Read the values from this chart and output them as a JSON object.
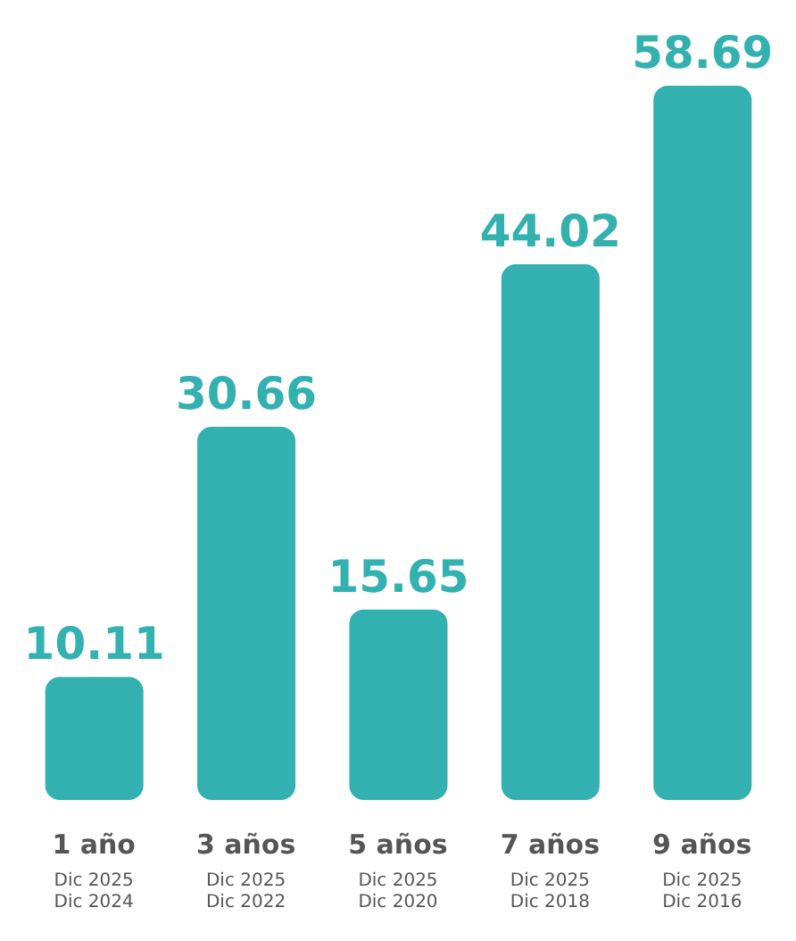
{
  "chart_data": {
    "type": "bar",
    "categories": [
      "1 año\nDic 2025\nDic 2024",
      "3 años\nDic 2025\nDic 2022",
      "5 años\nDic 2025\nDic 2020",
      "7 años\nDic 2025\nDic 2018",
      "9 años\nDic 2025\nDic 2016"
    ],
    "values": [
      10.11,
      30.66,
      15.65,
      44.02,
      58.69
    ],
    "color": "#33b0b0",
    "data_labels": true
  }
}
